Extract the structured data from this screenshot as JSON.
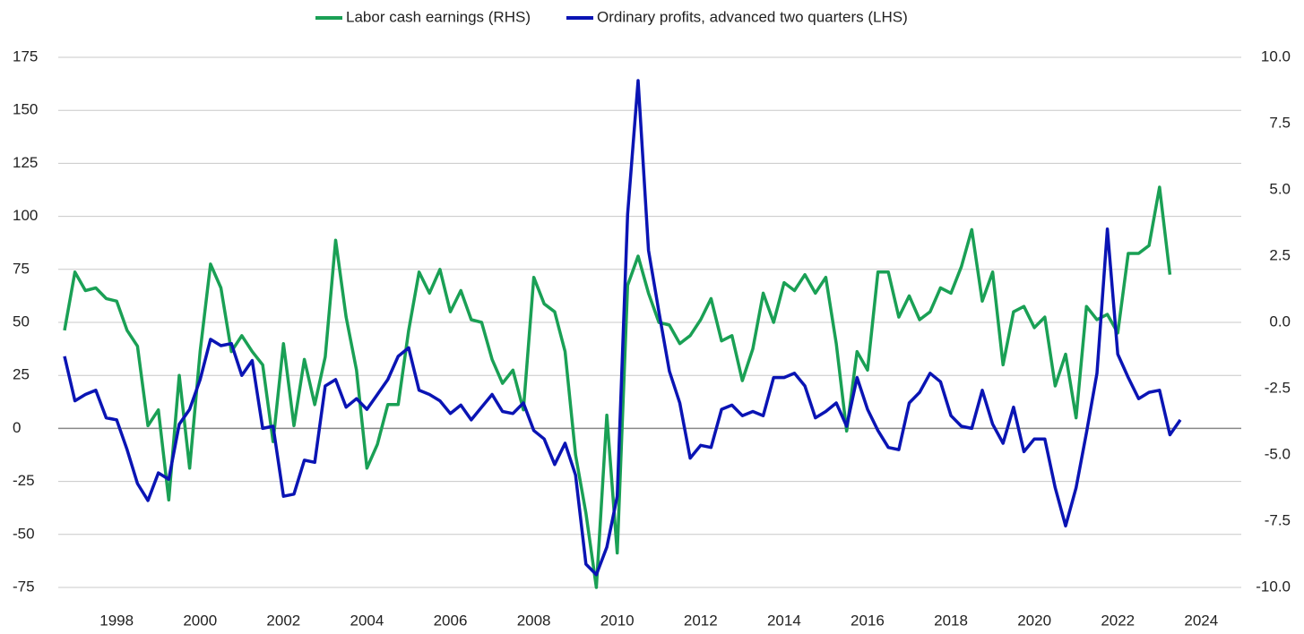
{
  "chart_data": {
    "type": "line",
    "legend_position": "top",
    "grid": true,
    "xlim": [
      1996.6,
      2024.96
    ],
    "xticks": [
      1998,
      2000,
      2002,
      2004,
      2006,
      2008,
      2010,
      2012,
      2014,
      2016,
      2018,
      2020,
      2022,
      2024
    ],
    "ylim": [
      -75,
      175
    ],
    "yticks": [
      175,
      150,
      125,
      100,
      75,
      50,
      25,
      0,
      -25,
      -50,
      -75
    ],
    "y2lim": [
      -10,
      10
    ],
    "y2ticks": [
      {
        "value": 10,
        "label": "10.0"
      },
      7.5,
      {
        "value": 5,
        "label": "5.0"
      },
      2.5,
      {
        "value": 0,
        "label": "0.0"
      },
      -2.5,
      {
        "value": -5,
        "label": "-5.0"
      },
      -7.5,
      {
        "value": -10,
        "label": "-10.0"
      }
    ],
    "series": [
      {
        "name": "Labor cash earnings (RHS)",
        "color": "#1aa055",
        "axis": "y2",
        "x": [
          1996.75,
          1997,
          1997.25,
          1997.5,
          1997.75,
          1998,
          1998.25,
          1998.5,
          1998.75,
          1999,
          1999.25,
          1999.5,
          1999.75,
          2000,
          2000.25,
          2000.5,
          2000.75,
          2001,
          2001.25,
          2001.5,
          2001.75,
          2002,
          2002.25,
          2002.5,
          2002.75,
          2003,
          2003.25,
          2003.5,
          2003.75,
          2004,
          2004.25,
          2004.5,
          2004.75,
          2005,
          2005.25,
          2005.5,
          2005.75,
          2006,
          2006.25,
          2006.5,
          2006.75,
          2007,
          2007.25,
          2007.5,
          2007.75,
          2008,
          2008.25,
          2008.5,
          2008.75,
          2009,
          2009.25,
          2009.5,
          2009.75,
          2010,
          2010.25,
          2010.5,
          2010.75,
          2011,
          2011.25,
          2011.5,
          2011.75,
          2012,
          2012.25,
          2012.5,
          2012.75,
          2013,
          2013.25,
          2013.5,
          2013.75,
          2014,
          2014.25,
          2014.5,
          2014.75,
          2015,
          2015.25,
          2015.5,
          2015.75,
          2016,
          2016.25,
          2016.5,
          2016.75,
          2017,
          2017.25,
          2017.5,
          2017.75,
          2018,
          2018.25,
          2018.5,
          2018.75,
          2019,
          2019.25,
          2019.5,
          2019.75,
          2020,
          2020.25,
          2020.5,
          2020.75,
          2021,
          2021.25,
          2021.5,
          2021.75,
          2022,
          2022.25,
          2022.5,
          2022.75,
          2023,
          2023.25
        ],
        "values": [
          -0.3,
          1.9,
          1.2,
          1.3,
          0.9,
          0.8,
          -0.3,
          -0.9,
          -3.9,
          -3.3,
          -6.7,
          -2.0,
          -5.5,
          -1.1,
          2.2,
          1.3,
          -1.1,
          -0.5,
          -1.1,
          -1.6,
          -4.5,
          -0.8,
          -3.9,
          -1.4,
          -3.1,
          -1.3,
          3.1,
          0.2,
          -1.8,
          -5.5,
          -4.6,
          -3.1,
          -3.1,
          -0.3,
          1.9,
          1.1,
          2.0,
          0.4,
          1.2,
          0.1,
          0.0,
          -1.4,
          -2.3,
          -1.8,
          -3.3,
          1.7,
          0.7,
          0.4,
          -1.1,
          -5.0,
          -7.2,
          -10.0,
          -3.5,
          -8.7,
          1.4,
          2.5,
          1.1,
          0.0,
          -0.1,
          -0.8,
          -0.5,
          0.1,
          0.9,
          -0.7,
          -0.5,
          -2.2,
          -1.0,
          1.1,
          0.0,
          1.5,
          1.2,
          1.8,
          1.1,
          1.7,
          -0.8,
          -4.1,
          -1.1,
          -1.8,
          1.9,
          1.9,
          0.2,
          1.0,
          0.1,
          0.4,
          1.3,
          1.1,
          2.1,
          3.5,
          0.8,
          1.9,
          -1.6,
          0.4,
          0.6,
          -0.2,
          0.2,
          -2.4,
          -1.2,
          -3.6,
          0.6,
          0.1,
          0.3,
          -0.4,
          2.6,
          2.6,
          2.9,
          5.1,
          1.8
        ]
      },
      {
        "name": "Ordinary profits, advanced two quarters (LHS)",
        "color": "#0a14b4",
        "axis": "y",
        "x": [
          1996.75,
          1997,
          1997.25,
          1997.5,
          1997.75,
          1998,
          1998.25,
          1998.5,
          1998.75,
          1999,
          1999.25,
          1999.5,
          1999.75,
          2000,
          2000.25,
          2000.5,
          2000.75,
          2001,
          2001.25,
          2001.5,
          2001.75,
          2002,
          2002.25,
          2002.5,
          2002.75,
          2003,
          2003.25,
          2003.5,
          2003.75,
          2004,
          2004.25,
          2004.5,
          2004.75,
          2005,
          2005.25,
          2005.5,
          2005.75,
          2006,
          2006.25,
          2006.5,
          2006.75,
          2007,
          2007.25,
          2007.5,
          2007.75,
          2008,
          2008.25,
          2008.5,
          2008.75,
          2009,
          2009.25,
          2009.5,
          2009.75,
          2010,
          2010.25,
          2010.5,
          2010.75,
          2011,
          2011.25,
          2011.5,
          2011.75,
          2012,
          2012.25,
          2012.5,
          2012.75,
          2013,
          2013.25,
          2013.5,
          2013.75,
          2014,
          2014.25,
          2014.5,
          2014.75,
          2015,
          2015.25,
          2015.5,
          2015.75,
          2016,
          2016.25,
          2016.5,
          2016.75,
          2017,
          2017.25,
          2017.5,
          2017.75,
          2018,
          2018.25,
          2018.5,
          2018.75,
          2019,
          2019.25,
          2019.5,
          2019.75,
          2020,
          2020.25,
          2020.5,
          2020.75,
          2021,
          2021.25,
          2021.5,
          2021.75,
          2022,
          2022.25,
          2022.5,
          2022.75,
          2023,
          2023.25,
          2023.5
        ],
        "values": [
          34,
          13,
          16,
          18,
          5,
          4,
          -10,
          -26,
          -34,
          -21,
          -24,
          2,
          9,
          23,
          42,
          39,
          40,
          25,
          32,
          0,
          1,
          -32,
          -31,
          -15,
          -16,
          20,
          23,
          10,
          14,
          9,
          16,
          23,
          34,
          38,
          18,
          16,
          13,
          7,
          11,
          4,
          10,
          16,
          8,
          7,
          12,
          -1,
          -5,
          -17,
          -7,
          -22,
          -64,
          -69,
          -56,
          -32,
          101,
          164,
          84,
          55,
          27,
          12,
          -14,
          -8,
          -9,
          9,
          11,
          6,
          8,
          6,
          24,
          24,
          26,
          20,
          5,
          8,
          12,
          1,
          24,
          9,
          -1,
          -9,
          -10,
          12,
          17,
          26,
          22,
          6,
          1,
          0,
          18,
          2,
          -7,
          10,
          -11,
          -5,
          -5,
          -28,
          -46,
          -28,
          -2,
          26,
          94,
          35,
          24,
          14,
          17,
          18,
          -3,
          4
        ]
      }
    ]
  }
}
